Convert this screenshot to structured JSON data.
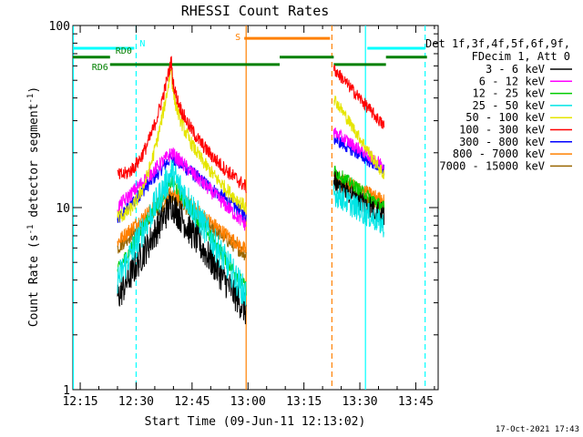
{
  "chart_data": {
    "type": "line",
    "title": "RHESSI Count Rates",
    "xlabel": "Start Time (09-Jun-11 12:13:02)",
    "ylabel_main": "Count Rate (s",
    "ylabel_sup1": "-1",
    "ylabel_mid": " detector segment",
    "ylabel_sup2": "-1",
    "ylabel_end": ")",
    "xlim": [
      "12:13:02",
      "13:51:00"
    ],
    "ylim": [
      1,
      100
    ],
    "yscale": "log",
    "x_ticks": [
      "12:15",
      "12:30",
      "12:45",
      "13:00",
      "13:15",
      "13:30",
      "13:45"
    ],
    "y_ticks": [
      "1",
      "10",
      "100"
    ],
    "timestamp": "17-Oct-2021 17:43",
    "legend": {
      "placement": "right",
      "header1": "Det 1f,3f,4f,5f,6f,9f,",
      "header2": "FDecim 1, Att 0",
      "entries": [
        {
          "label": "3 - 6 keV",
          "color": "#000000"
        },
        {
          "label": "6 - 12 keV",
          "color": "#ff00ff"
        },
        {
          "label": "12 - 25 keV",
          "color": "#00cc00"
        },
        {
          "label": "25 - 50 keV",
          "color": "#00e5e5"
        },
        {
          "label": "50 - 100 keV",
          "color": "#e5e500"
        },
        {
          "label": "100 - 300 keV",
          "color": "#ff0000"
        },
        {
          "label": "300 - 800 keV",
          "color": "#0000ff"
        },
        {
          "label": "800 - 7000 keV",
          "color": "#ff8000"
        },
        {
          "label": "7000 - 15000 keV",
          "color": "#996600"
        }
      ]
    },
    "flags": [
      {
        "label": "N",
        "color": "#00ffff",
        "start": "12:13:02",
        "end": "12:29:30",
        "level": 75
      },
      {
        "label": "",
        "color": "#00ffff",
        "start": "13:32:00",
        "end": "13:47:30",
        "level": 75
      },
      {
        "label": "S",
        "color": "#ff8000",
        "start": "12:59:00",
        "end": "13:22:00",
        "level": 85
      },
      {
        "label": "RD0",
        "color": "#008000",
        "start": "12:13:02",
        "end": "12:23:00",
        "level": 67
      },
      {
        "label": "",
        "color": "#008000",
        "start": "13:08:30",
        "end": "13:23:00",
        "level": 67
      },
      {
        "label": "",
        "color": "#008000",
        "start": "13:37:00",
        "end": "13:48:00",
        "level": 67
      },
      {
        "label": "RD6",
        "color": "#008000",
        "start": "12:23:00",
        "end": "13:08:30",
        "level": 61
      },
      {
        "label": "",
        "color": "#008000",
        "start": "13:23:00",
        "end": "13:37:00",
        "level": 61
      }
    ],
    "vlines": [
      {
        "t": "12:13:10",
        "color": "#00ffff",
        "style": "solid"
      },
      {
        "t": "12:30:00",
        "color": "#00ffff",
        "style": "dashed"
      },
      {
        "t": "12:59:30",
        "color": "#ff8000",
        "style": "solid"
      },
      {
        "t": "13:22:30",
        "color": "#ff8000",
        "style": "dashed"
      },
      {
        "t": "13:31:30",
        "color": "#00ffff",
        "style": "solid"
      },
      {
        "t": "13:47:30",
        "color": "#00ffff",
        "style": "dashed"
      }
    ],
    "segment1": {
      "start": "12:25:00",
      "end": "12:59:30",
      "peak_time": "12:39:30",
      "series": [
        {
          "name": "3 - 6 keV",
          "start": 3.2,
          "peak": 10.5,
          "end": 2.7
        },
        {
          "name": "6 - 12 keV",
          "start": 10.0,
          "peak": 20.0,
          "end": 8.0
        },
        {
          "name": "12 - 25 keV",
          "start": 4.5,
          "peak": 14.0,
          "end": 3.6
        },
        {
          "name": "25 - 50 keV",
          "start": 4.0,
          "peak": 15.5,
          "end": 3.3
        },
        {
          "name": "50 - 100 keV",
          "start": 9.0,
          "peak": 60.0,
          "end": 10.0
        },
        {
          "name": "100 - 300 keV",
          "start": 15.0,
          "peak": 65.0,
          "end": 13.0
        },
        {
          "name": "300 - 800 keV",
          "start": 8.5,
          "peak": 19.0,
          "end": 9.0
        },
        {
          "name": "800 - 7000 keV",
          "start": 6.5,
          "peak": 12.5,
          "end": 5.8
        },
        {
          "name": "7000 - 15000 keV",
          "start": 6.0,
          "peak": 11.5,
          "end": 5.5
        }
      ]
    },
    "segment2": {
      "start": "13:23:00",
      "end": "13:36:30",
      "series": [
        {
          "name": "3 - 6 keV",
          "start": 14.0,
          "end": 9.0
        },
        {
          "name": "6 - 12 keV",
          "start": 26.0,
          "end": 17.0
        },
        {
          "name": "12 - 25 keV",
          "start": 16.0,
          "end": 10.0
        },
        {
          "name": "25 - 50 keV",
          "start": 12.0,
          "end": 8.0
        },
        {
          "name": "50 - 100 keV",
          "start": 40.0,
          "end": 15.0
        },
        {
          "name": "100 - 300 keV",
          "start": 58.0,
          "end": 28.0
        },
        {
          "name": "300 - 800 keV",
          "start": 24.0,
          "end": 16.0
        },
        {
          "name": "800 - 7000 keV",
          "start": 15.0,
          "end": 11.0
        },
        {
          "name": "7000 - 15000 keV",
          "start": 14.0,
          "end": 10.0
        }
      ]
    }
  }
}
